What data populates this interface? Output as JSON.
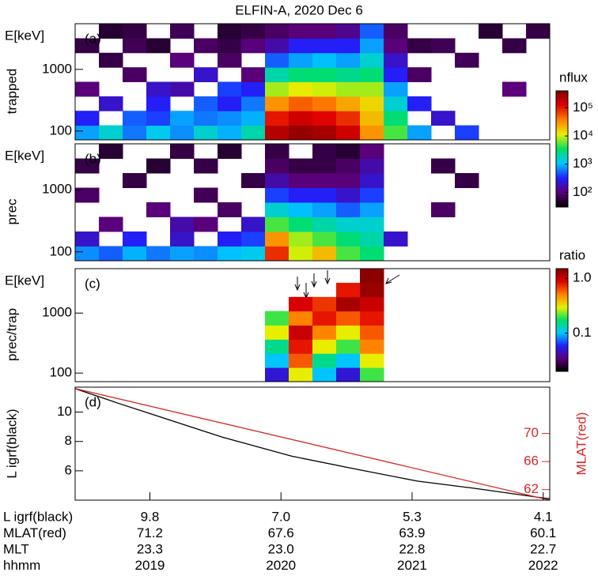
{
  "title": "ELFIN-A, 2020 Dec 6",
  "chart_data": [
    {
      "type": "heatmap",
      "panel_label": "(a)",
      "energy_label": "E[keV]",
      "ylabel": "trapped",
      "log_y": true,
      "xlim": [
        1218.43,
        1222.05
      ],
      "ylim": [
        72,
        5500
      ],
      "yticks": [
        100,
        1000
      ],
      "x_edges": [
        1218.43,
        1218.611,
        1218.792,
        1218.973,
        1219.154,
        1219.335,
        1219.516,
        1219.697,
        1219.878,
        1220.059,
        1220.24,
        1220.421,
        1220.602,
        1220.783,
        1220.964,
        1221.145,
        1221.326,
        1221.507,
        1221.688,
        1221.869,
        1222.05
      ],
      "y_edges": [
        72,
        124,
        213,
        366,
        629,
        1081,
        1858,
        3193,
        5500
      ],
      "z": [
        [
          800,
          1500,
          600,
          1200,
          700,
          1500,
          900,
          2000,
          200000,
          300000,
          250000,
          150000,
          30000,
          5000,
          800,
          null,
          400,
          null,
          null,
          null
        ],
        [
          300,
          null,
          500,
          400,
          800,
          600,
          700,
          900,
          100000,
          150000,
          120000,
          80000,
          20000,
          3000,
          null,
          200,
          null,
          null,
          null,
          null
        ],
        [
          null,
          200,
          null,
          300,
          null,
          500,
          300,
          600,
          30000,
          50000,
          40000,
          25000,
          15000,
          1500,
          300,
          null,
          null,
          null,
          null,
          null
        ],
        [
          100,
          null,
          null,
          200,
          150,
          null,
          400,
          300,
          8000,
          12000,
          10000,
          8000,
          8000,
          800,
          null,
          null,
          null,
          null,
          100,
          null
        ],
        [
          null,
          null,
          80,
          null,
          null,
          200,
          null,
          100,
          2000,
          3000,
          3000,
          2500,
          3000,
          300,
          80,
          null,
          null,
          null,
          null,
          null
        ],
        [
          null,
          60,
          null,
          null,
          100,
          null,
          80,
          null,
          500,
          800,
          1000,
          800,
          1500,
          200,
          null,
          null,
          70,
          null,
          null,
          null
        ],
        [
          60,
          null,
          70,
          50,
          null,
          80,
          60,
          100,
          150,
          300,
          300,
          300,
          800,
          100,
          60,
          70,
          null,
          null,
          60,
          null
        ],
        [
          null,
          50,
          60,
          null,
          70,
          null,
          50,
          60,
          80,
          100,
          100,
          120,
          500,
          80,
          null,
          null,
          null,
          50,
          null,
          60
        ]
      ],
      "colorbar": {
        "label": "nflux",
        "log": true,
        "zlim": [
          30,
          400000
        ],
        "ticks": [
          {
            "value": 100,
            "label": "10²"
          },
          {
            "value": 1000,
            "label": "10³"
          },
          {
            "value": 10000,
            "label": "10⁴"
          },
          {
            "value": 100000,
            "label": "10⁵"
          }
        ],
        "colormap": [
          "#000000",
          "#5a0078",
          "#2020ff",
          "#00c8ff",
          "#00e060",
          "#e8f000",
          "#ff8000",
          "#e00000",
          "#800000"
        ]
      }
    },
    {
      "type": "heatmap",
      "panel_label": "(b)",
      "energy_label": "E[keV]",
      "ylabel": "prec",
      "log_y": true,
      "xlim": [
        1218.43,
        1222.05
      ],
      "ylim": [
        72,
        5500
      ],
      "yticks": [
        100,
        1000
      ],
      "x_edges": [
        1218.43,
        1218.611,
        1218.792,
        1218.973,
        1219.154,
        1219.335,
        1219.516,
        1219.697,
        1219.878,
        1220.059,
        1220.24,
        1220.421,
        1220.602,
        1220.783,
        1220.964,
        1221.145,
        1221.326,
        1221.507,
        1221.688,
        1221.869,
        1222.05
      ],
      "y_edges": [
        72,
        124,
        213,
        366,
        629,
        1081,
        1858,
        3193,
        5500
      ],
      "z": [
        [
          700,
          500,
          900,
          600,
          800,
          700,
          1000,
          1200,
          80000,
          10000,
          20000,
          5000,
          3000,
          null,
          null,
          null,
          null,
          null,
          null,
          null
        ],
        [
          200,
          null,
          300,
          null,
          200,
          null,
          300,
          400,
          30000,
          8000,
          5000,
          3000,
          2000,
          200,
          null,
          null,
          null,
          null,
          null,
          null
        ],
        [
          null,
          100,
          null,
          null,
          150,
          100,
          null,
          200,
          5000,
          3000,
          2000,
          1500,
          1500,
          null,
          null,
          null,
          null,
          null,
          null,
          null
        ],
        [
          null,
          null,
          null,
          100,
          null,
          null,
          80,
          null,
          1500,
          1000,
          800,
          500,
          800,
          null,
          null,
          80,
          null,
          null,
          null,
          null
        ],
        [
          80,
          null,
          null,
          null,
          null,
          70,
          null,
          null,
          400,
          300,
          300,
          200,
          400,
          null,
          null,
          null,
          null,
          null,
          null,
          null
        ],
        [
          null,
          null,
          60,
          null,
          null,
          null,
          null,
          60,
          150,
          100,
          100,
          100,
          200,
          null,
          null,
          null,
          60,
          null,
          null,
          null
        ],
        [
          60,
          null,
          null,
          50,
          null,
          60,
          null,
          null,
          80,
          60,
          60,
          80,
          150,
          null,
          null,
          60,
          null,
          null,
          null,
          null
        ],
        [
          null,
          50,
          null,
          null,
          60,
          null,
          50,
          null,
          60,
          null,
          60,
          50,
          100,
          null,
          null,
          null,
          null,
          null,
          null,
          null
        ]
      ]
    },
    {
      "type": "heatmap",
      "panel_label": "(c)",
      "energy_label": "E[keV]",
      "ylabel": "prec/trap",
      "log_y": true,
      "xlim": [
        1218.43,
        1222.05
      ],
      "ylim": [
        72,
        5500
      ],
      "yticks": [
        100,
        1000
      ],
      "x_edges": [
        1218.43,
        1218.611,
        1218.792,
        1218.973,
        1219.154,
        1219.335,
        1219.516,
        1219.697,
        1219.878,
        1220.059,
        1220.24,
        1220.421,
        1220.602,
        1220.783,
        1220.964,
        1221.145,
        1221.326,
        1221.507,
        1221.688,
        1221.869,
        1222.05
      ],
      "y_edges": [
        72,
        124,
        213,
        366,
        629,
        1081,
        1858,
        3193,
        5500
      ],
      "z": [
        [
          null,
          null,
          null,
          null,
          null,
          null,
          null,
          null,
          0.05,
          0.3,
          0.1,
          0.05,
          0.2,
          null,
          null,
          null,
          null,
          null,
          null,
          null
        ],
        [
          null,
          null,
          null,
          null,
          null,
          null,
          null,
          null,
          0.1,
          0.6,
          0.15,
          0.1,
          0.3,
          null,
          null,
          null,
          null,
          null,
          null,
          null
        ],
        [
          null,
          null,
          null,
          null,
          null,
          null,
          null,
          null,
          0.15,
          0.8,
          0.3,
          0.2,
          0.5,
          null,
          null,
          null,
          null,
          null,
          null,
          null
        ],
        [
          null,
          null,
          null,
          null,
          null,
          null,
          null,
          null,
          0.3,
          1.0,
          0.5,
          0.3,
          0.6,
          null,
          null,
          null,
          null,
          null,
          null,
          null
        ],
        [
          null,
          null,
          null,
          null,
          null,
          null,
          null,
          null,
          0.2,
          0.5,
          0.8,
          0.6,
          0.8,
          null,
          null,
          null,
          null,
          null,
          null,
          null
        ],
        [
          null,
          null,
          null,
          null,
          null,
          null,
          null,
          null,
          null,
          0.9,
          0.7,
          1.2,
          1.0,
          null,
          null,
          null,
          null,
          null,
          null,
          null
        ],
        [
          null,
          null,
          null,
          null,
          null,
          null,
          null,
          null,
          null,
          null,
          null,
          0.8,
          1.3,
          null,
          null,
          null,
          null,
          null,
          null,
          null
        ],
        [
          null,
          null,
          null,
          null,
          null,
          null,
          null,
          null,
          null,
          null,
          null,
          null,
          1.4,
          null,
          null,
          null,
          null,
          null,
          null,
          null
        ]
      ],
      "colorbar": {
        "label": "ratio",
        "log": true,
        "zlim": [
          0.02,
          1.5
        ],
        "ticks": [
          0.1,
          {
            "value": 1,
            "label": "1.0"
          }
        ],
        "colormap": [
          "#000000",
          "#5a0078",
          "#2020ff",
          "#00c8ff",
          "#00e060",
          "#e8f000",
          "#ff8000",
          "#e00000",
          "#800000"
        ]
      }
    },
    {
      "type": "line",
      "panel_label": "(d)",
      "ylabel": "L igrf(black)",
      "y2label": "MLAT(red)",
      "xlim": [
        1218.43,
        1222.05
      ],
      "xticks": [
        1219,
        1220,
        1221,
        1222
      ],
      "ylim": [
        4.0,
        11.7
      ],
      "yticks": [
        6,
        8,
        10
      ],
      "y2lim": [
        60.5,
        76.6
      ],
      "y2ticks": [
        62,
        66,
        70
      ],
      "series": [
        {
          "color": "#000000",
          "x": [
            1218.43,
            1218.76,
            1219.0,
            1219.55,
            1220.08,
            1220.58,
            1221.04,
            1221.48,
            1222.0,
            1222.05
          ],
          "values": [
            11.6,
            10.6,
            9.9,
            8.3,
            7.0,
            6.1,
            5.3,
            4.8,
            4.15,
            4.1
          ]
        },
        {
          "color": "#d62728",
          "axis": "y2",
          "x": [
            1218.43,
            1222.05
          ],
          "values": [
            76.4,
            60.5
          ]
        }
      ]
    }
  ],
  "table": {
    "rows": [
      {
        "label": "L igrf(black)",
        "values": [
          "9.8",
          "7.0",
          "5.3",
          "4.1"
        ]
      },
      {
        "label": "MLAT(red)",
        "values": [
          "71.2",
          "67.6",
          "63.9",
          "60.1"
        ]
      },
      {
        "label": "MLT",
        "values": [
          "23.3",
          "23.0",
          "22.8",
          "22.7"
        ]
      },
      {
        "label": "hhmm",
        "values": [
          "2019",
          "2020",
          "2021",
          "2022"
        ]
      }
    ]
  }
}
